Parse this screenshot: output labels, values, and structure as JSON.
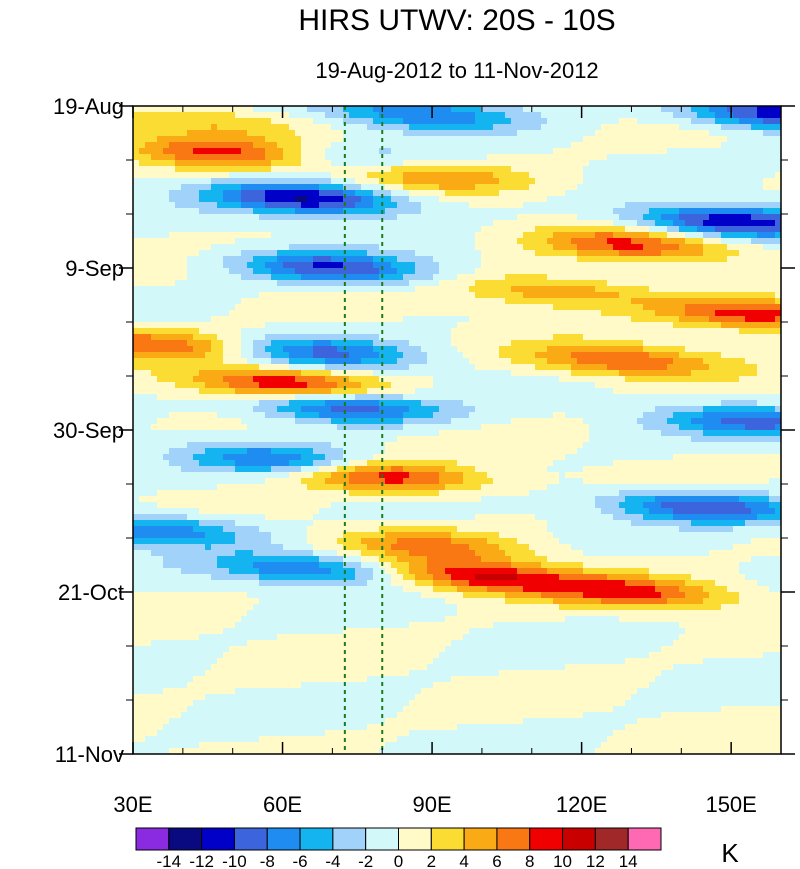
{
  "chart_data": {
    "type": "heatmap",
    "title": "HIRS UTWV: 20S - 10S",
    "subtitle": "19-Aug-2012 to 11-Nov-2012",
    "x_axis": {
      "label": "",
      "range": [
        30,
        160
      ],
      "ticks": [
        30,
        60,
        90,
        120,
        150
      ],
      "tick_labels": [
        "30E",
        "60E",
        "90E",
        "120E",
        "150E"
      ]
    },
    "y_axis": {
      "label": "",
      "range_days": [
        0,
        84
      ],
      "ticks": [
        0,
        21,
        42,
        63,
        84
      ],
      "tick_labels": [
        "19-Aug",
        "9-Sep",
        "30-Sep",
        "21-Oct",
        "11-Nov"
      ]
    },
    "reference_lines_lon": [
      72.5,
      80
    ],
    "colorbar": {
      "units": "K",
      "levels": [
        -14,
        -12,
        -10,
        -8,
        -6,
        -4,
        -2,
        0,
        2,
        4,
        6,
        8,
        10,
        12,
        14
      ],
      "level_labels": [
        "-14",
        "-12",
        "-10",
        "-8",
        "-6",
        "-4",
        "-2",
        "0",
        "2",
        "4",
        "6",
        "8",
        "10",
        "12",
        "14"
      ],
      "colors": [
        "#8a2be2",
        "#0a0a80",
        "#0000c8",
        "#3c64dc",
        "#1e8cf0",
        "#14b4f0",
        "#a0d2fa",
        "#d2f8fa",
        "#fffac8",
        "#fadc32",
        "#faaa14",
        "#fa7814",
        "#f00000",
        "#c80000",
        "#a02828",
        "#ff69b4"
      ]
    },
    "anomaly_bands": [
      {
        "day": 2,
        "lon": 45,
        "value": 4
      },
      {
        "day": 1,
        "lon": 88,
        "value": -8
      },
      {
        "day": 1,
        "lon": 160,
        "value": -12
      },
      {
        "day": 6,
        "lon": 48,
        "value": 8
      },
      {
        "day": 7,
        "lon": 75,
        "value": -4
      },
      {
        "day": 9,
        "lon": 90,
        "value": 6
      },
      {
        "day": 12,
        "lon": 65,
        "value": -12
      },
      {
        "day": 15,
        "lon": 150,
        "value": -12
      },
      {
        "day": 18,
        "lon": 130,
        "value": 8
      },
      {
        "day": 21,
        "lon": 70,
        "value": -10
      },
      {
        "day": 24,
        "lon": 115,
        "value": 6
      },
      {
        "day": 27,
        "lon": 155,
        "value": 10
      },
      {
        "day": 31,
        "lon": 35,
        "value": 8
      },
      {
        "day": 32,
        "lon": 68,
        "value": -8
      },
      {
        "day": 33,
        "lon": 128,
        "value": 8
      },
      {
        "day": 36,
        "lon": 60,
        "value": 10
      },
      {
        "day": 39,
        "lon": 72,
        "value": -10
      },
      {
        "day": 41,
        "lon": 155,
        "value": -8
      },
      {
        "day": 46,
        "lon": 60,
        "value": -8
      },
      {
        "day": 48,
        "lon": 80,
        "value": 10
      },
      {
        "day": 52,
        "lon": 145,
        "value": -10
      },
      {
        "day": 55,
        "lon": 35,
        "value": -8
      },
      {
        "day": 57,
        "lon": 90,
        "value": 6
      },
      {
        "day": 60,
        "lon": 65,
        "value": -8
      },
      {
        "day": 61,
        "lon": 100,
        "value": 10
      },
      {
        "day": 63,
        "lon": 130,
        "value": 8
      }
    ]
  }
}
